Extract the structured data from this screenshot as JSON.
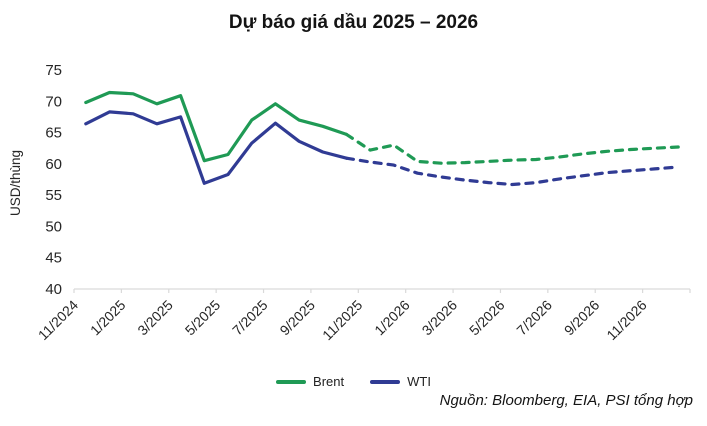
{
  "chart": {
    "title": "Dự báo giá dầu 2025 – 2026",
    "source": "Nguồn: Bloomberg, EIA, PSI tổng hợp",
    "legend": {
      "brent": "Brent",
      "wti": "WTI"
    }
  },
  "colors": {
    "brent": "#1f9a55",
    "wti": "#303b94",
    "axis": "#d9d9d9",
    "text": "#262626"
  },
  "chart_data": {
    "type": "line",
    "title": "Dự báo giá dầu 2025 – 2026",
    "xlabel": "",
    "ylabel": "USD/thùng",
    "ylim": [
      40,
      75
    ],
    "y_tick_step": 5,
    "grid": false,
    "legend_position": "bottom-center",
    "x": [
      "11/2024",
      "12/2024",
      "1/2025",
      "2/2025",
      "3/2025",
      "4/2025",
      "5/2025",
      "6/2025",
      "7/2025",
      "8/2025",
      "9/2025",
      "10/2025",
      "11/2025",
      "12/2025",
      "1/2026",
      "2/2026",
      "3/2026",
      "4/2026",
      "5/2026",
      "6/2026",
      "7/2026",
      "8/2026",
      "9/2026",
      "10/2026",
      "11/2026",
      "12/2026"
    ],
    "x_tick_labels": [
      "11/2024",
      "1/2025",
      "3/2025",
      "5/2025",
      "7/2025",
      "9/2025",
      "11/2025",
      "1/2026",
      "3/2026",
      "5/2026",
      "7/2026",
      "9/2026",
      "11/2026"
    ],
    "forecast_style": "dashed",
    "series": [
      {
        "name": "Brent",
        "color": "#1f9a55",
        "forecast_from_index": 11,
        "values": [
          69.8,
          71.4,
          71.2,
          69.6,
          70.9,
          60.5,
          61.5,
          67.0,
          69.6,
          67.0,
          66.0,
          64.7,
          62.2,
          63.0,
          60.4,
          60.1,
          60.2,
          60.4,
          60.6,
          60.7,
          61.1,
          61.6,
          62.0,
          62.3,
          62.5,
          62.7
        ]
      },
      {
        "name": "WTI",
        "color": "#303b94",
        "forecast_from_index": 11,
        "values": [
          66.4,
          68.3,
          68.0,
          66.4,
          67.5,
          56.9,
          58.3,
          63.3,
          66.5,
          63.6,
          61.9,
          60.9,
          60.3,
          59.8,
          58.5,
          57.9,
          57.4,
          57.0,
          56.7,
          57.0,
          57.6,
          58.1,
          58.6,
          58.9,
          59.2,
          59.5
        ]
      }
    ]
  }
}
